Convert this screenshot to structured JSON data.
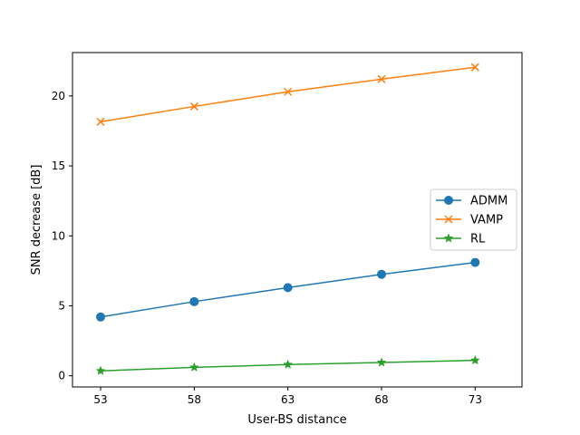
{
  "chart_data": {
    "type": "line",
    "title": "",
    "xlabel": "User-BS distance",
    "ylabel": "SNR decrease [dB]",
    "x": [
      53,
      58,
      63,
      68,
      73
    ],
    "xlim": [
      51.5,
      75.5
    ],
    "ylim": [
      -0.8,
      23.1
    ],
    "xticks": [
      53,
      58,
      63,
      68,
      73
    ],
    "yticks": [
      0,
      5,
      10,
      15,
      20
    ],
    "grid": false,
    "legend_position": "center-right",
    "series": [
      {
        "name": "ADMM",
        "color": "#1f77b4",
        "marker": "circle",
        "values": [
          4.2,
          5.3,
          6.3,
          7.25,
          8.1
        ]
      },
      {
        "name": "VAMP",
        "color": "#ff7f0e",
        "marker": "x",
        "values": [
          18.15,
          19.25,
          20.3,
          21.2,
          22.05
        ]
      },
      {
        "name": "RL",
        "color": "#2ca02c",
        "marker": "star",
        "values": [
          0.35,
          0.6,
          0.8,
          0.95,
          1.1
        ]
      }
    ]
  }
}
